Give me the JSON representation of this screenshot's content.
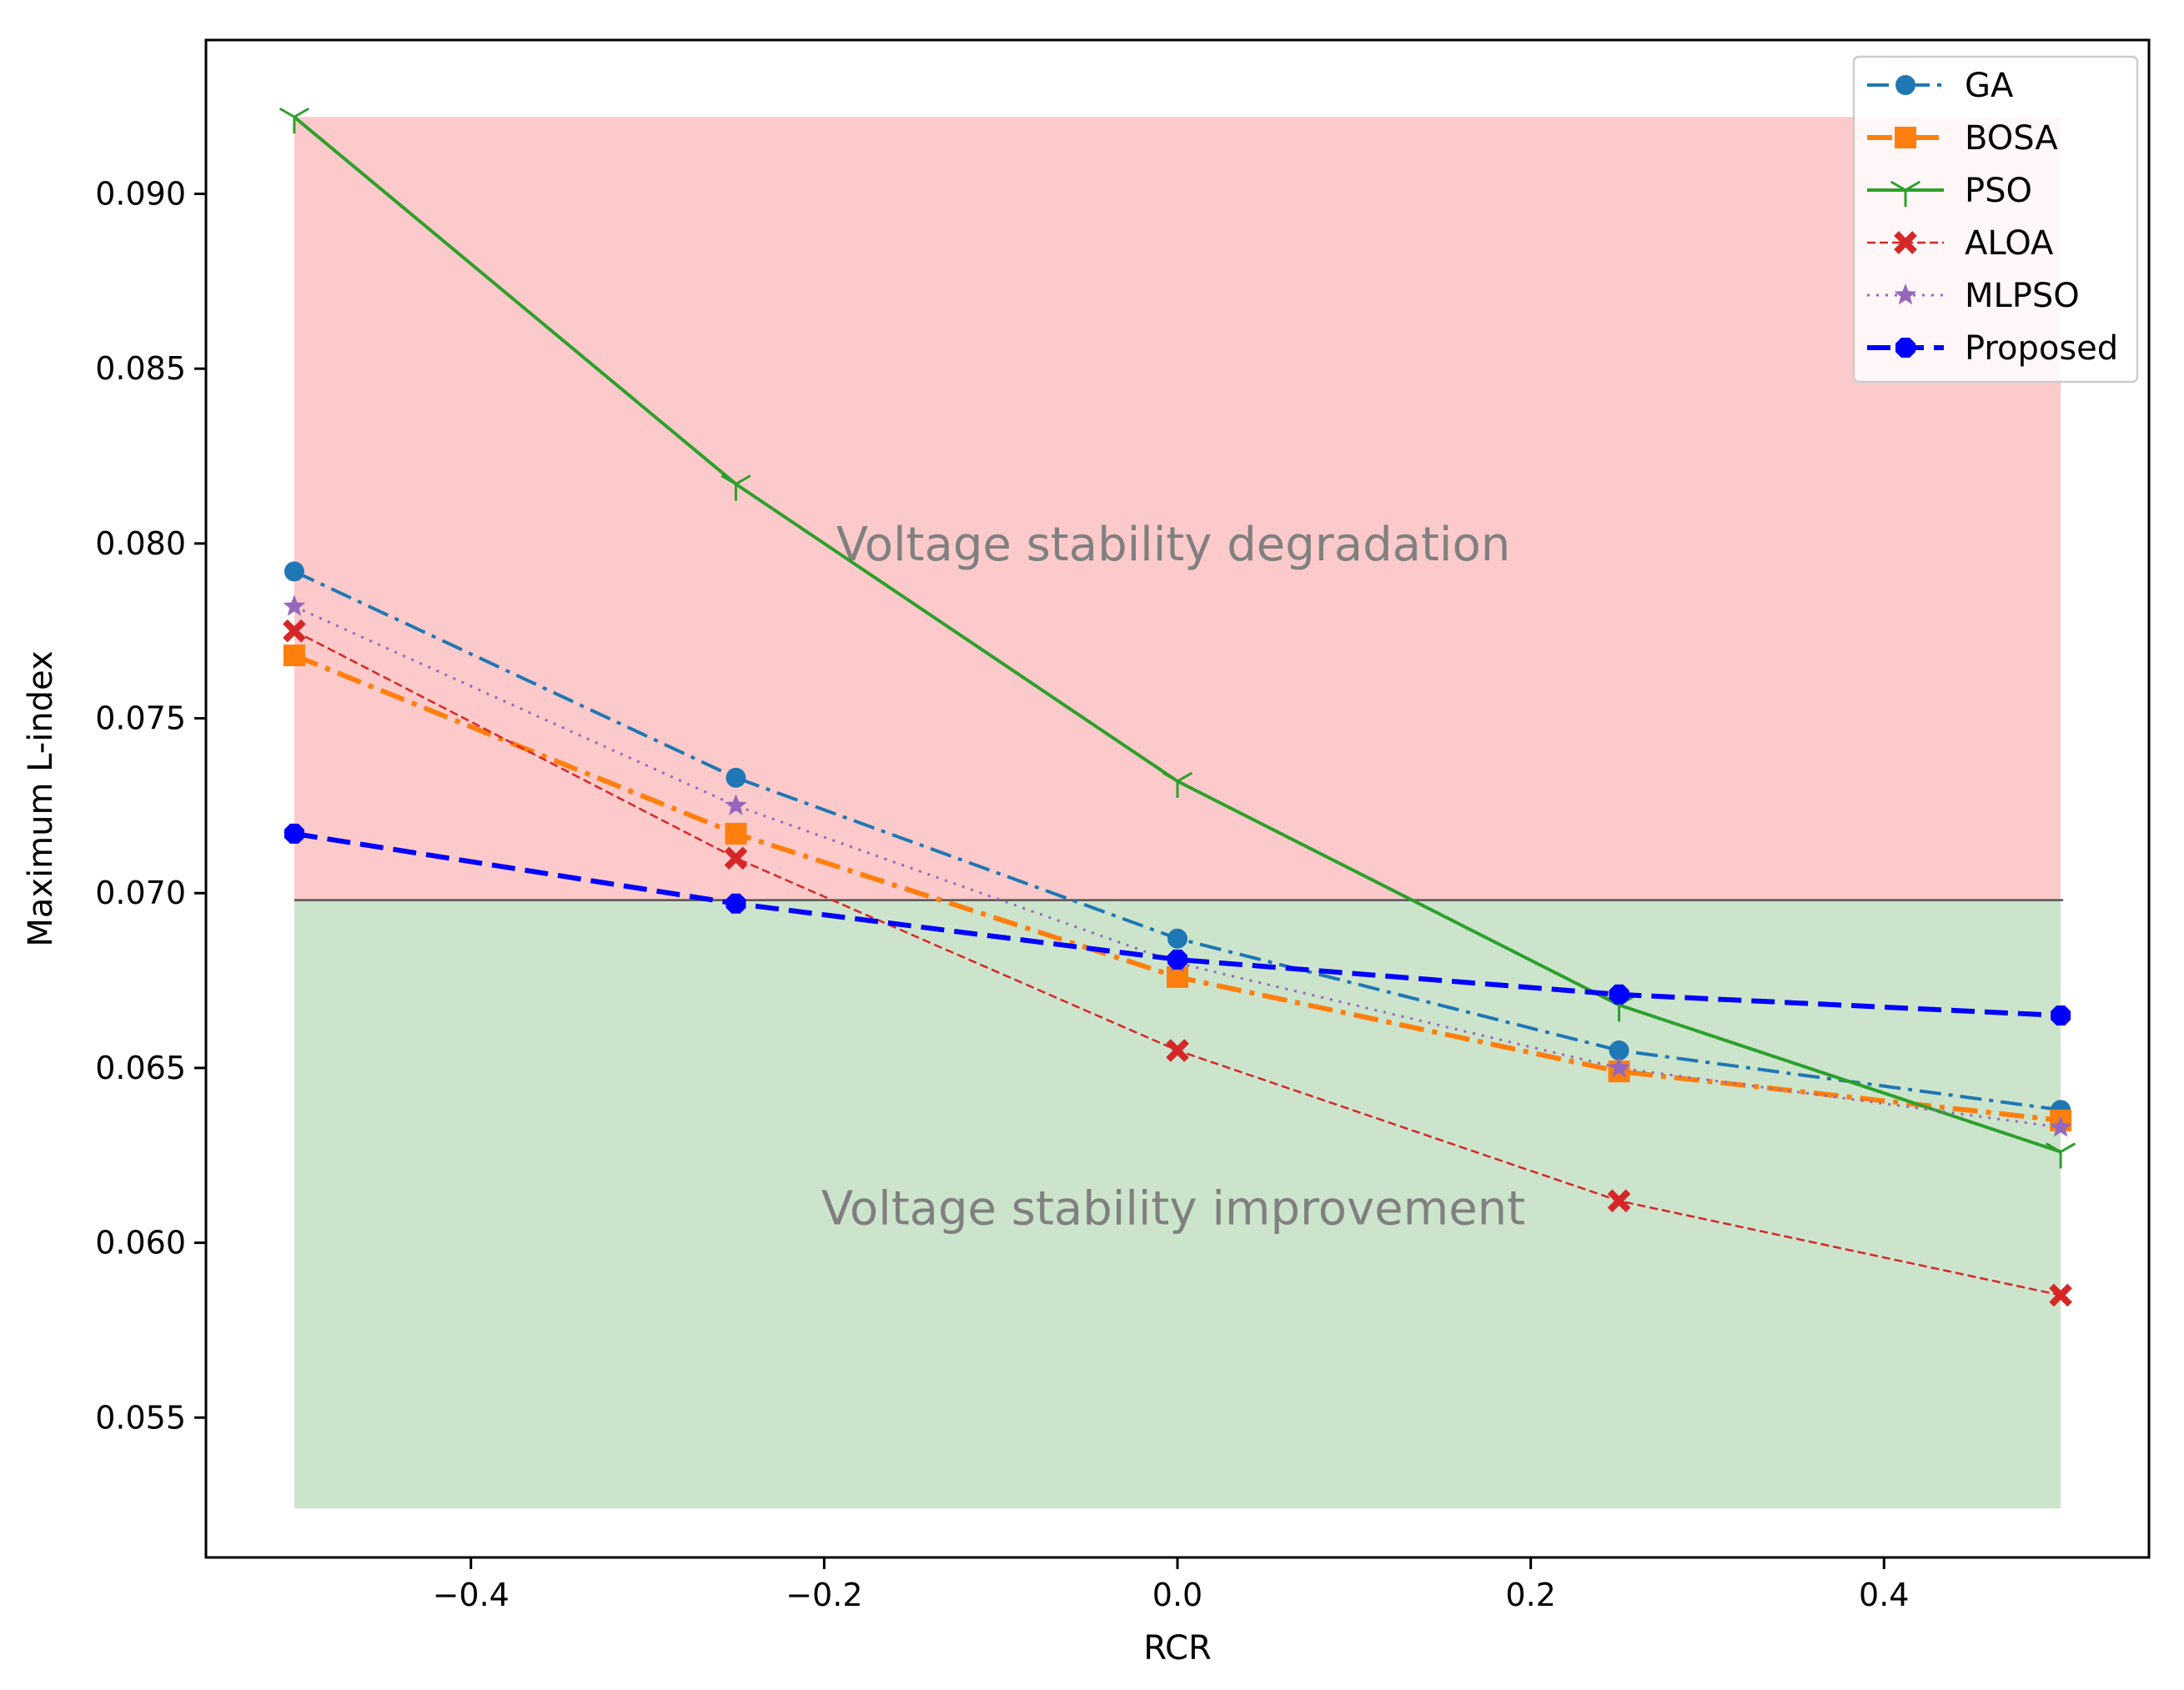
{
  "chart_data": {
    "type": "line",
    "xlabel": "RCR",
    "ylabel": "Maximum L-index",
    "xlim": [
      -0.55,
      0.55
    ],
    "ylim": [
      0.051,
      0.0944
    ],
    "x": [
      -0.5,
      -0.25,
      0.0,
      0.25,
      0.5
    ],
    "xticks": [
      -0.4,
      -0.2,
      0.0,
      0.2,
      0.4
    ],
    "xtick_labels": [
      "−0.4",
      "−0.2",
      "0.0",
      "0.2",
      "0.4"
    ],
    "yticks": [
      0.055,
      0.06,
      0.065,
      0.07,
      0.075,
      0.08,
      0.085,
      0.09
    ],
    "ytick_labels": [
      "0.055",
      "0.060",
      "0.065",
      "0.070",
      "0.075",
      "0.080",
      "0.085",
      "0.090"
    ],
    "threshold": 0.0698,
    "regions": [
      {
        "name": "degradation",
        "x": [
          -0.5,
          0.5
        ],
        "y": [
          0.0698,
          0.0922
        ],
        "color": "#fccaca",
        "label": "Voltage stability degradation",
        "label_x": 0.0,
        "label_y": 0.08
      },
      {
        "name": "improvement",
        "x": [
          -0.5,
          0.5
        ],
        "y": [
          0.0524,
          0.0698
        ],
        "color": "#cde4cc",
        "label": "Voltage stability improvement",
        "label_x": 0.0,
        "label_y": 0.061
      }
    ],
    "series": [
      {
        "name": "GA",
        "values": [
          0.0792,
          0.0733,
          0.0687,
          0.0655,
          0.0638
        ],
        "color": "#1f77b4",
        "dash": "dashdot",
        "marker": "circle"
      },
      {
        "name": "BOSA",
        "values": [
          0.0768,
          0.0717,
          0.0676,
          0.0649,
          0.0635
        ],
        "color": "#ff7f0e",
        "dash": "dashdot",
        "marker": "square"
      },
      {
        "name": "PSO",
        "values": [
          0.0922,
          0.0817,
          0.0732,
          0.0668,
          0.0626
        ],
        "color": "#2ca02c",
        "dash": "solid",
        "marker": "tri"
      },
      {
        "name": "ALOA",
        "values": [
          0.0775,
          0.071,
          0.0655,
          0.0612,
          0.0585
        ],
        "color": "#d62728",
        "dash": "dashed",
        "marker": "x"
      },
      {
        "name": "MLPSO",
        "values": [
          0.0782,
          0.0725,
          0.068,
          0.065,
          0.0633
        ],
        "color": "#9467bd",
        "dash": "dotted",
        "marker": "star"
      },
      {
        "name": "Proposed",
        "values": [
          0.0717,
          0.0697,
          0.0681,
          0.0671,
          0.0665
        ],
        "color": "#0000ff",
        "dash": "dashed",
        "marker": "octagon"
      }
    ],
    "legend_position": "top-right"
  }
}
